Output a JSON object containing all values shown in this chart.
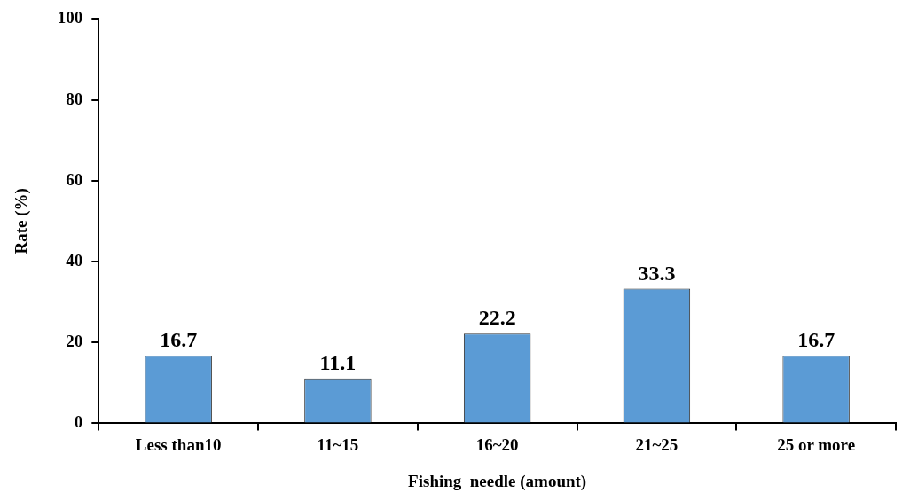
{
  "chart_data": {
    "type": "bar",
    "xlabel": "Fishing  needle (amount)",
    "ylabel": "Rate (%)",
    "categories": [
      "Less than10",
      "11~15",
      "16~20",
      "21~25",
      "25 or more"
    ],
    "values": [
      16.7,
      11.1,
      22.2,
      33.3,
      16.7
    ],
    "color": "#5b9bd5",
    "ylim": [
      0,
      100
    ],
    "yticks": [
      0,
      20,
      40,
      60,
      80,
      100
    ],
    "data_labels": true,
    "grid": false,
    "legend": false
  }
}
